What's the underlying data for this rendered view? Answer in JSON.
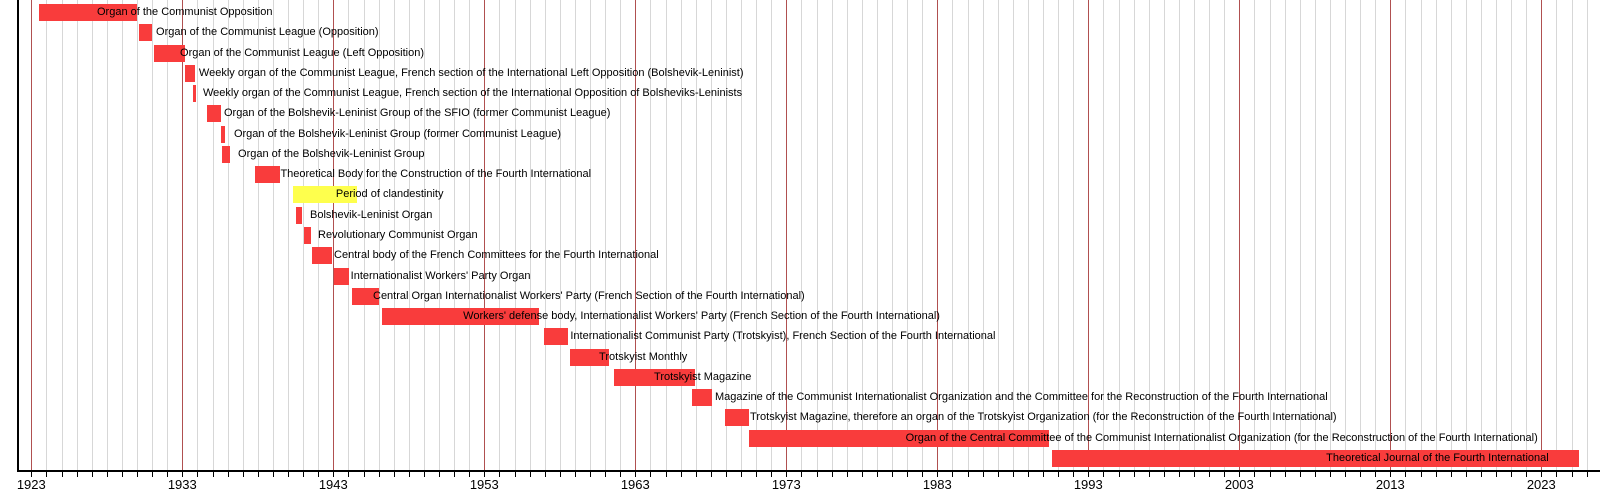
{
  "chart_data": {
    "type": "bar",
    "subtype": "horizontal-gantt-timeline",
    "title": "",
    "xlabel": "",
    "ylabel": "",
    "grid": "vertical, one line per year, accented dark-red line per decade",
    "legend_position": "none",
    "x_axis": {
      "min_year": 1922.1,
      "max_year": 2026.9,
      "decade_tick_years": [
        1923,
        1933,
        1943,
        1953,
        1963,
        1973,
        1983,
        1993,
        2003,
        2013,
        2023
      ],
      "minor_tick_step_years": 1,
      "minor_tick_first_year": 1923,
      "minor_tick_last_year": 2026
    },
    "rows": [
      {
        "label": "Organ of the Communist Opposition",
        "start": 1923.5,
        "end": 1930.0,
        "label_at": 1927.35,
        "color": "red"
      },
      {
        "label": "Organ of the Communist League (Opposition)",
        "start": 1930.1,
        "end": 1931.0,
        "label_at": 1931.26,
        "color": "red"
      },
      {
        "label": "Organ of the Communist League (Left Opposition)",
        "start": 1931.1,
        "end": 1933.2,
        "label_at": 1932.85,
        "color": "red"
      },
      {
        "label": "Weekly organ of the Communist League, French section of the International Left Opposition (Bolshevik-Leninist)",
        "start": 1933.2,
        "end": 1933.85,
        "label_at": 1934.1,
        "color": "red"
      },
      {
        "label": "Weekly organ of the Communist League, French section of the International Opposition of Bolsheviks-Leninists",
        "start": 1933.72,
        "end": 1933.88,
        "label_at": 1934.37,
        "color": "red"
      },
      {
        "label": "Organ of the Bolshevik-Leninist Group of the SFIO (former Communist League)",
        "start": 1934.63,
        "end": 1935.56,
        "label_at": 1935.76,
        "color": "red"
      },
      {
        "label": "Organ of the Bolshevik-Leninist Group (former Communist League)",
        "start": 1935.56,
        "end": 1935.8,
        "label_at": 1936.42,
        "color": "red"
      },
      {
        "label": "Organ of the Bolshevik-Leninist Group",
        "start": 1935.63,
        "end": 1936.13,
        "label_at": 1936.69,
        "color": "red"
      },
      {
        "label": "Theoretical Body for the Construction of the Fourth International",
        "start": 1937.82,
        "end": 1939.47,
        "label_at": 1939.5,
        "color": "red"
      },
      {
        "label": "Period of clandestinity",
        "start": 1940.35,
        "end": 1944.6,
        "label_at": 1943.17,
        "color": "yellow"
      },
      {
        "label": "Bolshevik-Leninist Organ",
        "start": 1940.5,
        "end": 1940.95,
        "label_at": 1941.46,
        "color": "red"
      },
      {
        "label": "Revolutionary Communist Organ",
        "start": 1941.05,
        "end": 1941.5,
        "label_at": 1941.99,
        "color": "red"
      },
      {
        "label": "Central body of the French Committees for the Fourth International",
        "start": 1941.6,
        "end": 1942.9,
        "label_at": 1943.05,
        "color": "red"
      },
      {
        "label": "Internationalist Workers' Party Organ",
        "start": 1943.05,
        "end": 1944.05,
        "label_at": 1944.15,
        "color": "red"
      },
      {
        "label": "Central Organ Internationalist Workers' Party (French Section of the Fourth International)",
        "start": 1944.25,
        "end": 1946.0,
        "label_at": 1945.63,
        "color": "red"
      },
      {
        "label": "Workers' defense body, Internationalist Workers' Party (French Section of the Fourth International)",
        "start": 1946.2,
        "end": 1956.6,
        "label_at": 1951.6,
        "color": "red"
      },
      {
        "label": "Internationalist Communist Party (Trotskyist), French Section of the Fourth International",
        "start": 1956.95,
        "end": 1958.55,
        "label_at": 1958.7,
        "color": "red"
      },
      {
        "label": "Trotskyist Monthly",
        "start": 1958.7,
        "end": 1961.25,
        "label_at": 1960.6,
        "color": "red"
      },
      {
        "label": "Trotskyist Magazine",
        "start": 1961.6,
        "end": 1966.95,
        "label_at": 1964.24,
        "color": "red"
      },
      {
        "label": "Magazine of the Communist Internationalist Organization and the Committee for the Reconstruction of the Fourth International",
        "start": 1966.75,
        "end": 1968.1,
        "label_at": 1968.28,
        "color": "red"
      },
      {
        "label": "Trotskyist Magazine, therefore an organ of the Trotskyist Organization (for the Reconstruction of the Fourth International)",
        "start": 1968.95,
        "end": 1970.5,
        "label_at": 1970.6,
        "color": "red"
      },
      {
        "label": "Organ of the Central Committee of the Communist Internationalist Organization (for the Reconstruction of the Fourth International)",
        "start": 1970.5,
        "end": 1990.4,
        "label_at": 1980.9,
        "color": "red"
      },
      {
        "label": "Theoretical Journal of the Fourth International",
        "start": 1990.6,
        "end": 2025.5,
        "label_at": 2008.75,
        "color": "red"
      }
    ],
    "colors": {
      "bar_red": "#f93c3c",
      "bar_yellow": "#feff4d",
      "decade_gridline": "#b05050",
      "year_gridline": "#d7d7d7",
      "axis": "#000000",
      "text": "#000000"
    }
  }
}
